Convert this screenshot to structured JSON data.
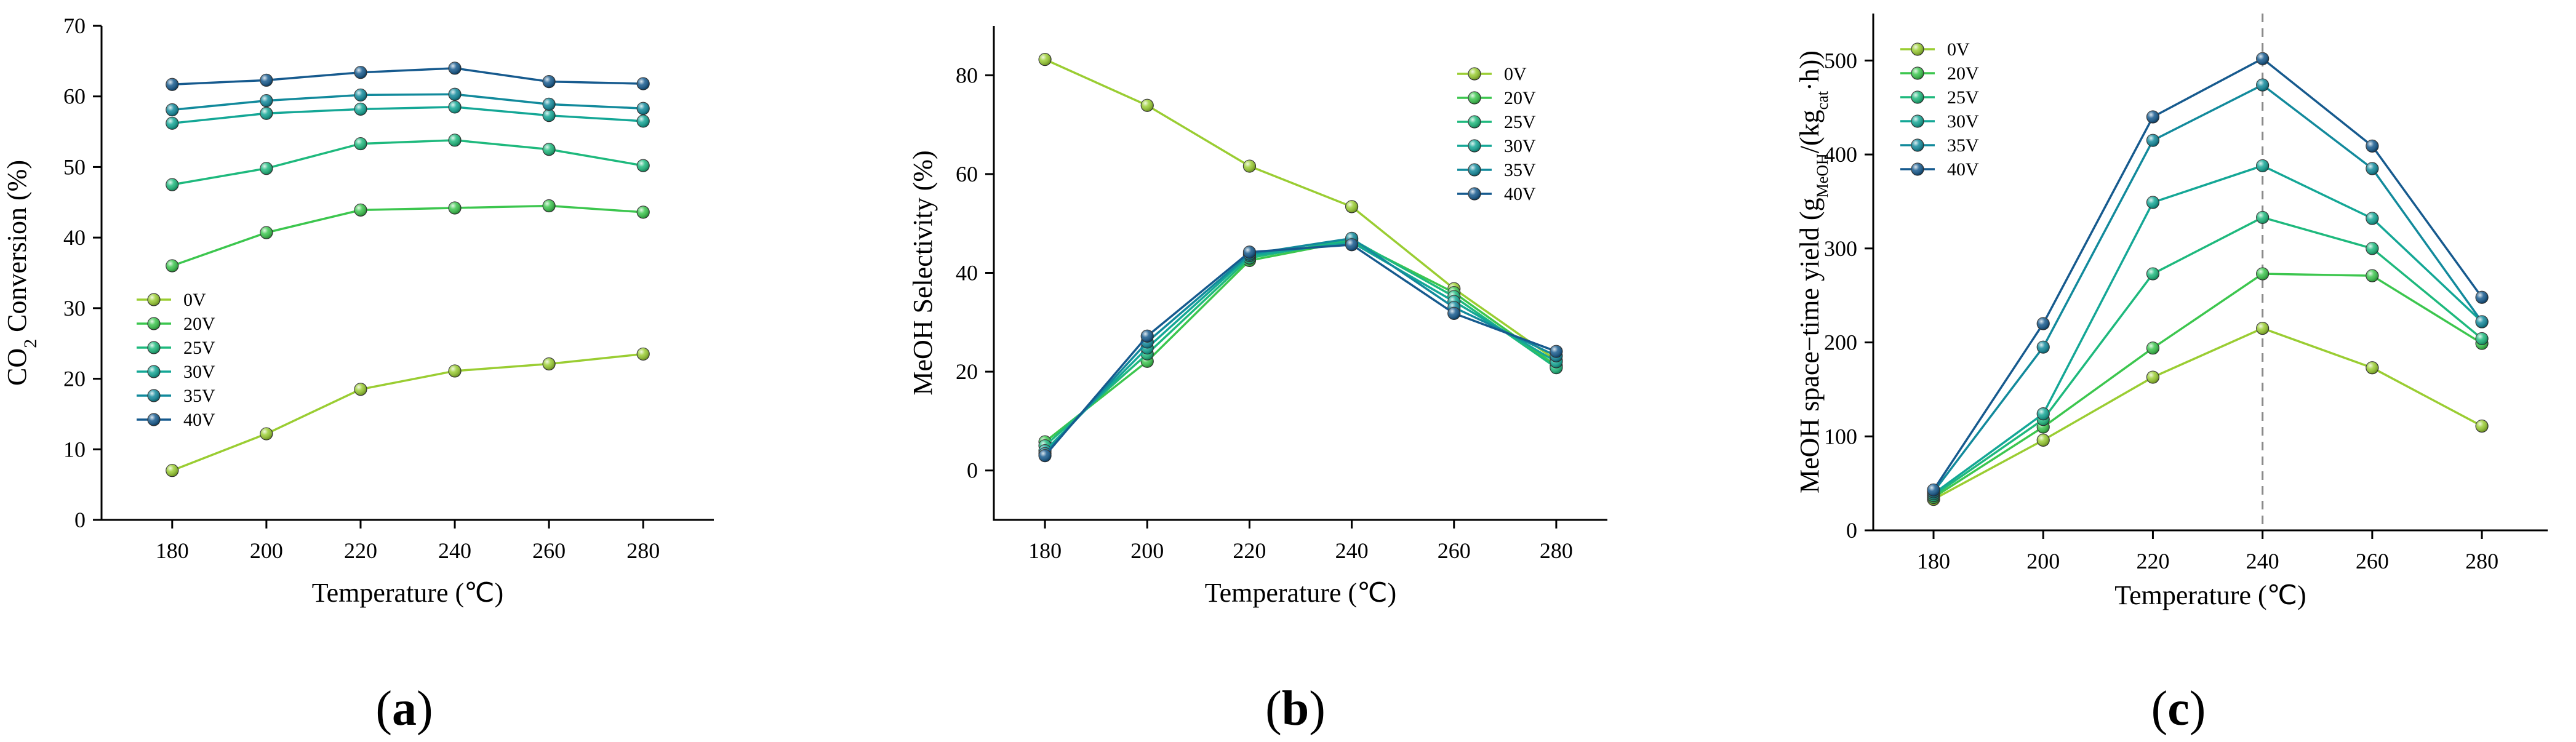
{
  "chart_data": [
    {
      "type": "line",
      "panel_label": "a",
      "xlabel": "Temperature (℃)",
      "ylabel_parts": {
        "pre": "CO",
        "sub": "2",
        "post": " Conversion (%)"
      },
      "xlim": [
        165,
        295
      ],
      "ylim": [
        0,
        70
      ],
      "xticks": [
        180,
        200,
        220,
        240,
        260,
        280
      ],
      "yticks": [
        0,
        10,
        20,
        30,
        40,
        50,
        60,
        70
      ],
      "x": [
        180,
        200,
        220,
        240,
        260,
        280
      ],
      "legend_position": "middle-left",
      "series": [
        {
          "name": "0V",
          "color": "#9ACD32",
          "values": [
            7.0,
            12.2,
            18.5,
            21.1,
            22.1,
            23.5
          ]
        },
        {
          "name": "20V",
          "color": "#3CC64E",
          "values": [
            36.0,
            40.7,
            43.9,
            44.2,
            44.5,
            43.6
          ]
        },
        {
          "name": "25V",
          "color": "#1EB97D",
          "values": [
            47.5,
            49.8,
            53.3,
            53.8,
            52.5,
            50.2
          ]
        },
        {
          "name": "30V",
          "color": "#14A796",
          "values": [
            56.2,
            57.6,
            58.2,
            58.5,
            57.3,
            56.5
          ]
        },
        {
          "name": "35V",
          "color": "#128A9C",
          "values": [
            58.1,
            59.4,
            60.2,
            60.3,
            58.9,
            58.3
          ]
        },
        {
          "name": "40V",
          "color": "#165A8E",
          "values": [
            61.7,
            62.3,
            63.4,
            64.0,
            62.1,
            61.8
          ]
        }
      ]
    },
    {
      "type": "line",
      "panel_label": "b",
      "xlabel": "Temperature (℃)",
      "ylabel": "MeOH Selectivity (%)",
      "xlim": [
        170,
        290
      ],
      "ylim": [
        -10,
        90
      ],
      "xticks": [
        180,
        200,
        220,
        240,
        260,
        280
      ],
      "yticks": [
        0,
        20,
        40,
        60,
        80
      ],
      "x": [
        180,
        200,
        220,
        240,
        260,
        280
      ],
      "legend_position": "top-right",
      "series": [
        {
          "name": "0V",
          "color": "#9ACD32",
          "values": [
            83.2,
            73.9,
            61.6,
            53.4,
            36.8,
            22.3
          ]
        },
        {
          "name": "20V",
          "color": "#3CC64E",
          "values": [
            5.8,
            22.1,
            42.5,
            46.5,
            36.0,
            21.2
          ]
        },
        {
          "name": "25V",
          "color": "#1EB97D",
          "values": [
            5.0,
            23.6,
            43.0,
            46.8,
            35.2,
            20.8
          ]
        },
        {
          "name": "30V",
          "color": "#14A796",
          "values": [
            4.0,
            24.8,
            43.5,
            46.2,
            34.2,
            22.0
          ]
        },
        {
          "name": "35V",
          "color": "#128A9C",
          "values": [
            3.4,
            26.0,
            43.8,
            47.0,
            33.0,
            23.2
          ]
        },
        {
          "name": "40V",
          "color": "#165A8E",
          "values": [
            3.0,
            27.2,
            44.2,
            45.7,
            31.8,
            24.1
          ]
        }
      ]
    },
    {
      "type": "line",
      "panel_label": "c",
      "xlabel": "Temperature (℃)",
      "ylabel_parts": {
        "pre": "MeOH space−time yield (g",
        "sub1": "MeOH",
        "mid": "/(kg",
        "sub2": "cat",
        "post": "·h))"
      },
      "xlim": [
        169,
        292
      ],
      "ylim": [
        0,
        550
      ],
      "xticks": [
        180,
        200,
        220,
        240,
        260,
        280
      ],
      "yticks": [
        0,
        100,
        200,
        300,
        400,
        500
      ],
      "x": [
        180,
        200,
        220,
        240,
        260,
        280
      ],
      "reference_line_x": 240,
      "legend_position": "top-left",
      "series": [
        {
          "name": "0V",
          "color": "#9ACD32",
          "values": [
            33,
            96,
            163,
            215,
            173,
            111
          ]
        },
        {
          "name": "20V",
          "color": "#3CC64E",
          "values": [
            35,
            110,
            194,
            273,
            271,
            199
          ]
        },
        {
          "name": "25V",
          "color": "#1EB97D",
          "values": [
            37,
            118,
            273,
            333,
            300,
            204
          ]
        },
        {
          "name": "30V",
          "color": "#14A796",
          "values": [
            39,
            124,
            349,
            388,
            332,
            222
          ]
        },
        {
          "name": "35V",
          "color": "#128A9C",
          "values": [
            41,
            195,
            415,
            474,
            385,
            222
          ]
        },
        {
          "name": "40V",
          "color": "#165A8E",
          "values": [
            43,
            220,
            440,
            502,
            409,
            248
          ]
        }
      ]
    }
  ]
}
